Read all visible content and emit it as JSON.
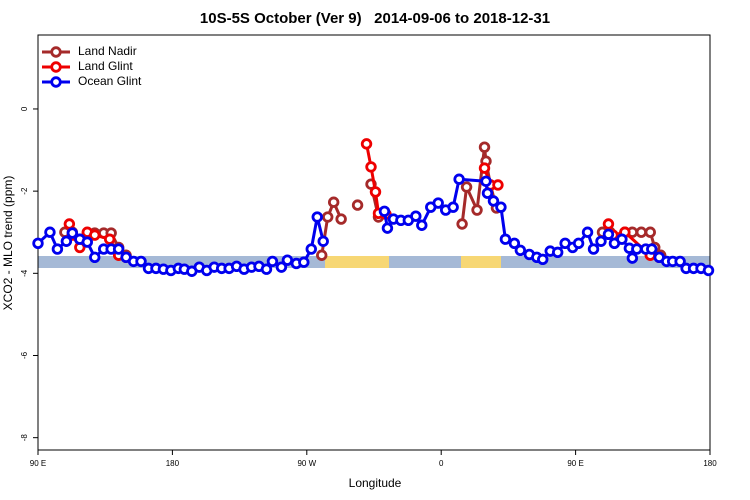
{
  "chart_data": {
    "type": "line",
    "title": "10S-5S October (Ver 9)   2014-09-06 to 2018-12-31",
    "x_label": "Longitude",
    "y_label": "XCO2 - MLO trend (ppm)",
    "xlim": [
      90,
      540
    ],
    "ylim": [
      -8.3,
      1.8
    ],
    "xticks": [
      {
        "value": 90,
        "label": "90 E"
      },
      180,
      {
        "value": 270,
        "label": "90 W"
      },
      {
        "value": 360,
        "label": "0"
      },
      {
        "value": 450,
        "label": "90 E"
      },
      {
        "value": 540,
        "label": "180"
      }
    ],
    "yticks": [
      0,
      -2,
      -4,
      -6,
      -8
    ],
    "legend": "top-left",
    "series": [
      {
        "name": "Land Nadir",
        "color": "#a52a2a",
        "x": [
          108,
          113,
          118,
          123,
          128,
          134,
          139,
          144,
          149,
          200,
          280,
          284,
          288,
          293,
          298,
          304,
          308,
          313,
          318,
          340,
          374,
          377,
          384,
          389,
          390,
          393,
          397,
          420,
          468,
          473,
          478,
          483,
          488,
          494,
          500,
          503,
          507
        ],
        "values": [
          -3.0,
          -3.0,
          -3.17,
          -3.07,
          -3.02,
          -3.02,
          -3.02,
          -3.37,
          -3.56,
          null,
          -3.56,
          -2.63,
          -2.27,
          -2.68,
          null,
          -2.34,
          null,
          -1.83,
          -2.63,
          null,
          -2.8,
          -1.9,
          -2.46,
          -0.93,
          -1.27,
          -1.85,
          -2.41,
          null,
          -3.0,
          -3.0,
          -3.17,
          -3.0,
          -3.0,
          -3.0,
          -3.0,
          -3.37,
          -3.56
        ]
      },
      {
        "name": "Land Glint",
        "color": "#ee0000",
        "x": [
          111,
          113,
          118,
          123,
          128,
          138,
          144,
          149,
          200,
          310,
          313,
          316,
          318,
          323,
          350,
          389,
          393,
          398,
          440,
          472,
          475,
          483,
          500,
          506
        ],
        "values": [
          -2.8,
          -3.07,
          -3.37,
          -3.0,
          -3.07,
          -3.17,
          -3.56,
          -3.61,
          null,
          -0.85,
          -1.41,
          -2.02,
          -2.54,
          -2.56,
          null,
          -1.44,
          -1.85,
          -1.85,
          null,
          -2.8,
          -3.07,
          -3.0,
          -3.56,
          -3.61
        ]
      },
      {
        "name": "Ocean Glint",
        "color": "#0000ee",
        "x": [
          90,
          98,
          103,
          109,
          113,
          118,
          123,
          128,
          134,
          139,
          144,
          149,
          154,
          159,
          164,
          169,
          174,
          179,
          184,
          188,
          193,
          198,
          203,
          208,
          213,
          218,
          223,
          228,
          233,
          238,
          243,
          247,
          253,
          257,
          263,
          268,
          273,
          277,
          281,
          300,
          322,
          324,
          328,
          333,
          338,
          343,
          347,
          353,
          358,
          363,
          368,
          372,
          390,
          391,
          395,
          400,
          403,
          409,
          413,
          419,
          424,
          428,
          433,
          438,
          443,
          448,
          452,
          458,
          462,
          467,
          472,
          476,
          481,
          486,
          488,
          491,
          497,
          501,
          506,
          511,
          515,
          520,
          524,
          529,
          534,
          539
        ],
        "values": [
          -3.27,
          -3.0,
          -3.41,
          -3.22,
          -3.02,
          -3.17,
          -3.24,
          -3.61,
          -3.41,
          -3.41,
          -3.41,
          -3.61,
          -3.71,
          -3.71,
          -3.88,
          -3.88,
          -3.9,
          -3.93,
          -3.88,
          -3.9,
          -3.95,
          -3.85,
          -3.93,
          -3.85,
          -3.88,
          -3.88,
          -3.83,
          -3.9,
          -3.85,
          -3.83,
          -3.9,
          -3.71,
          -3.85,
          -3.68,
          -3.76,
          -3.73,
          -3.41,
          -2.63,
          -3.22,
          null,
          -2.49,
          -2.9,
          -2.68,
          -2.71,
          -2.71,
          -2.61,
          -2.83,
          -2.39,
          -2.29,
          -2.46,
          -2.39,
          -1.71,
          -1.76,
          -2.05,
          -2.24,
          -2.39,
          -3.17,
          -3.27,
          -3.44,
          -3.54,
          -3.61,
          -3.66,
          -3.46,
          -3.49,
          -3.27,
          -3.37,
          -3.27,
          -3.0,
          -3.41,
          -3.22,
          -3.05,
          -3.27,
          -3.17,
          -3.39,
          -3.63,
          -3.41,
          -3.41,
          -3.41,
          -3.61,
          -3.71,
          -3.71,
          -3.71,
          -3.88,
          -3.88,
          -3.88,
          -3.93
        ]
      }
    ]
  }
}
